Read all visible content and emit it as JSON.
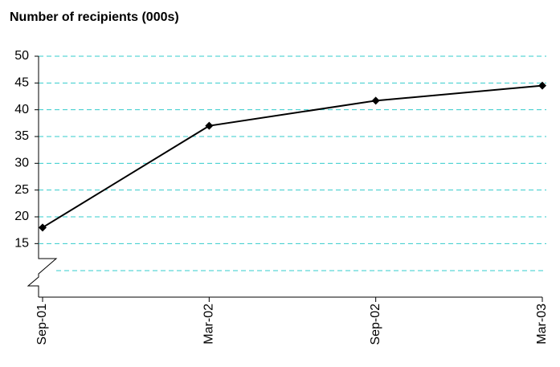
{
  "chart_data": {
    "type": "line",
    "title": "Number of recipients (000s)",
    "categories": [
      "Sep-01",
      "Mar-02",
      "Sep-02",
      "Mar-03"
    ],
    "series": [
      {
        "color": "#000000",
        "values": [
          18,
          37,
          41.7,
          44.5
        ]
      }
    ],
    "ylim": [
      5,
      50
    ],
    "yticks": [
      15,
      20,
      25,
      30,
      35,
      40,
      45,
      50
    ],
    "grid": true,
    "grid_color": "#33cccc"
  }
}
